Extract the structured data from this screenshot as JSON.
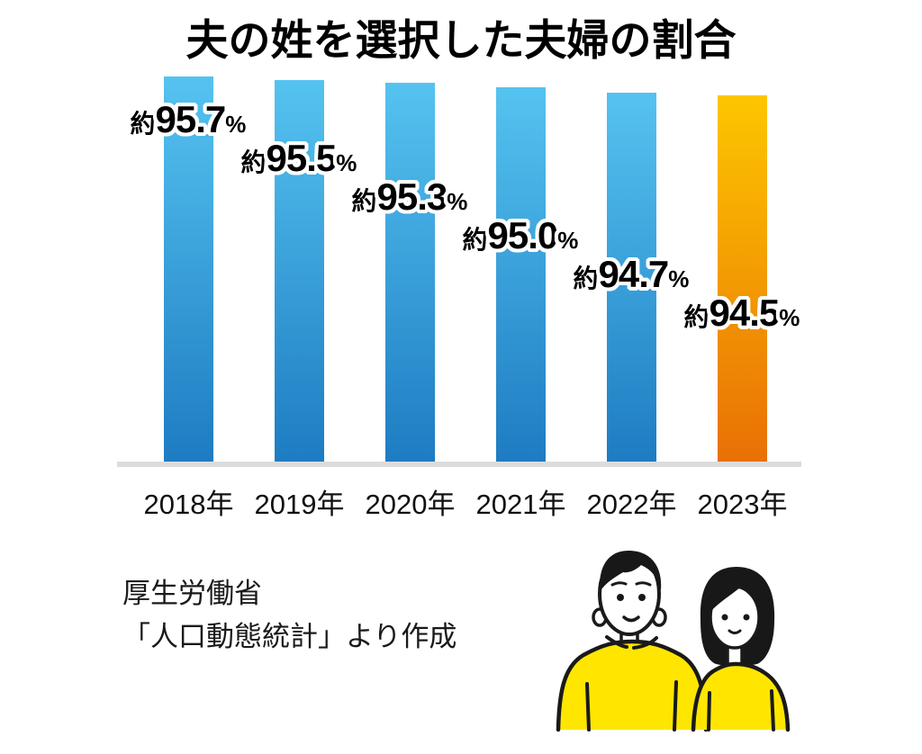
{
  "title": "夫の姓を選択した夫婦の割合",
  "chart_data": {
    "type": "bar",
    "title": "夫の姓を選択した夫婦の割合",
    "categories": [
      "2018年",
      "2019年",
      "2020年",
      "2021年",
      "2022年",
      "2023年"
    ],
    "values": [
      95.7,
      95.5,
      95.3,
      95.0,
      94.7,
      94.5
    ],
    "value_labels": [
      "約95.7%",
      "約95.5%",
      "約95.3%",
      "約95.0%",
      "約94.7%",
      "約94.5%"
    ],
    "value_label_prefix": "約",
    "value_label_suffix": "%",
    "xlabel": "",
    "ylabel": "",
    "y_axis_visible": false,
    "grid": false,
    "legend": false,
    "highlight_index": 5,
    "colors": {
      "bar_top": "#55c3f0",
      "bar_bottom": "#1e7cc2",
      "highlight_top": "#fdc600",
      "highlight_bottom": "#e97005",
      "baseline": "#dcdcdc",
      "label_text": "#000000",
      "label_outline": "#ffffff"
    }
  },
  "source": {
    "line1": "厚生労働省",
    "line2": "「人口動態統計」より作成"
  },
  "illustration": {
    "name": "couple-illustration",
    "shirt_color": "#ffe600",
    "hair_color": "#181818",
    "line_color": "#1a1a1a",
    "skin_color": "#ffffff"
  }
}
